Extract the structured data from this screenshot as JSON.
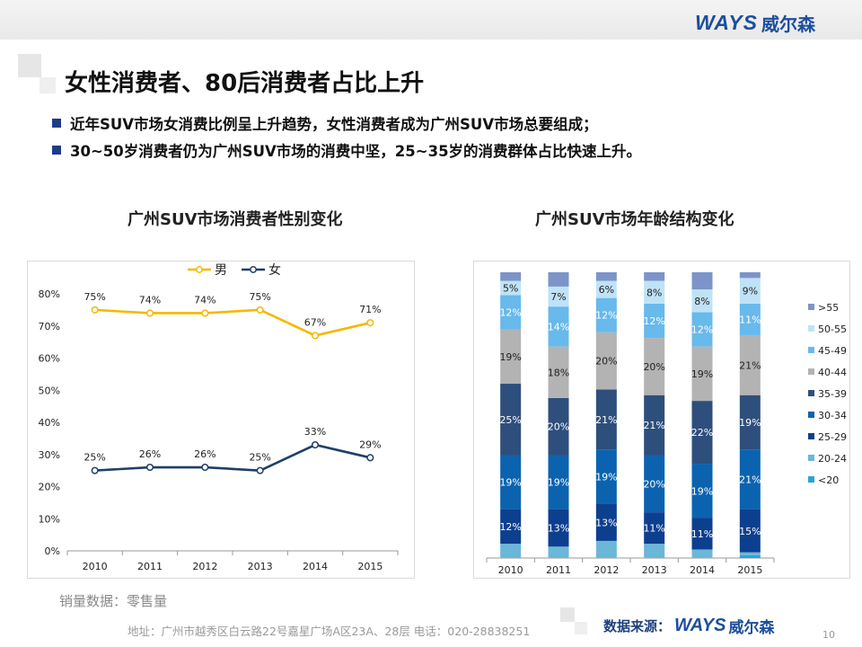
{
  "header": {
    "logo_mark": "WAYS",
    "logo_cn": "威尔森"
  },
  "title": "女性消费者、80后消费者占比上升",
  "bullets": [
    "近年SUV市场女消费比例呈上升趋势，女性消费者成为广州SUV市场总要组成；",
    "30~50岁消费者仍为广州SUV市场的消费中坚，25~35岁的消费群体占比快速上升。"
  ],
  "chart_data": [
    {
      "type": "line",
      "title": "广州SUV市场消费者性别变化",
      "x": [
        "2010",
        "2011",
        "2012",
        "2013",
        "2014",
        "2015"
      ],
      "ylim": [
        0,
        80
      ],
      "yticks": [
        0,
        10,
        20,
        30,
        40,
        50,
        60,
        70,
        80
      ],
      "ytick_labels": [
        "0%",
        "10%",
        "20%",
        "30%",
        "40%",
        "50%",
        "60%",
        "70%",
        "80%"
      ],
      "legend_position": "top",
      "series": [
        {
          "name": "男",
          "color": "#f5b800",
          "values": [
            75,
            74,
            74,
            75,
            67,
            71
          ],
          "labels": [
            "75%",
            "74%",
            "74%",
            "75%",
            "67%",
            "71%"
          ]
        },
        {
          "name": "女",
          "color": "#1f3f66",
          "values": [
            25,
            26,
            26,
            25,
            33,
            29
          ],
          "labels": [
            "25%",
            "26%",
            "26%",
            "25%",
            "33%",
            "29%"
          ]
        }
      ]
    },
    {
      "type": "bar",
      "stacked": true,
      "title": "广州SUV市场年龄结构变化",
      "categories": [
        "2010",
        "2011",
        "2012",
        "2013",
        "2014",
        "2015"
      ],
      "ylim": [
        0,
        100
      ],
      "legend_position": "right",
      "series": [
        {
          "name": "<20",
          "color": "#2ba3d6",
          "values": [
            0,
            0,
            0,
            0,
            0,
            1
          ]
        },
        {
          "name": "20-24",
          "color": "#6bb7d8",
          "values": [
            5,
            4,
            6,
            5,
            3,
            1
          ]
        },
        {
          "name": "25-29",
          "color": "#0d3f8f",
          "values": [
            12,
            13,
            13,
            11,
            11,
            15
          ]
        },
        {
          "name": "30-34",
          "color": "#0b63b0",
          "values": [
            19,
            19,
            19,
            20,
            19,
            21
          ]
        },
        {
          "name": "35-39",
          "color": "#2e4f7c",
          "values": [
            25,
            20,
            21,
            21,
            22,
            19
          ]
        },
        {
          "name": "40-44",
          "color": "#b3b3b3",
          "values": [
            19,
            18,
            20,
            20,
            19,
            21
          ]
        },
        {
          "name": "45-49",
          "color": "#68b9ec",
          "values": [
            12,
            14,
            12,
            12,
            12,
            11
          ]
        },
        {
          "name": "50-55",
          "color": "#bfe3f6",
          "values": [
            5,
            7,
            6,
            8,
            8,
            9
          ]
        },
        {
          "name": ">55",
          "color": "#7c94c8",
          "values": [
            3,
            5,
            3,
            3,
            6,
            2
          ]
        }
      ],
      "data_labels": {
        "25-29": [
          "12%",
          "13%",
          "13%",
          "11%",
          "11%",
          "15%"
        ],
        "30-34": [
          "19%",
          "19%",
          "19%",
          "20%",
          "19%",
          "21%"
        ],
        "35-39": [
          "25%",
          "20%",
          "21%",
          "21%",
          "22%",
          "19%"
        ],
        "40-44": [
          "19%",
          "18%",
          "20%",
          "20%",
          "19%",
          "21%"
        ],
        "45-49": [
          "12%",
          "14%",
          "12%",
          "12%",
          "12%",
          "11%"
        ],
        "50-55": [
          "5%",
          "7%",
          "6%",
          "8%",
          "8%",
          "9%"
        ]
      }
    }
  ],
  "footnote": "销量数据：零售量",
  "footer": {
    "address": "地址：广州市越秀区白云路22号嘉星广场A区23A、28层   电话：020-28838251",
    "source_label": "数据来源：",
    "source_mark": "WAYS",
    "source_cn": "威尔森",
    "page": "10"
  }
}
